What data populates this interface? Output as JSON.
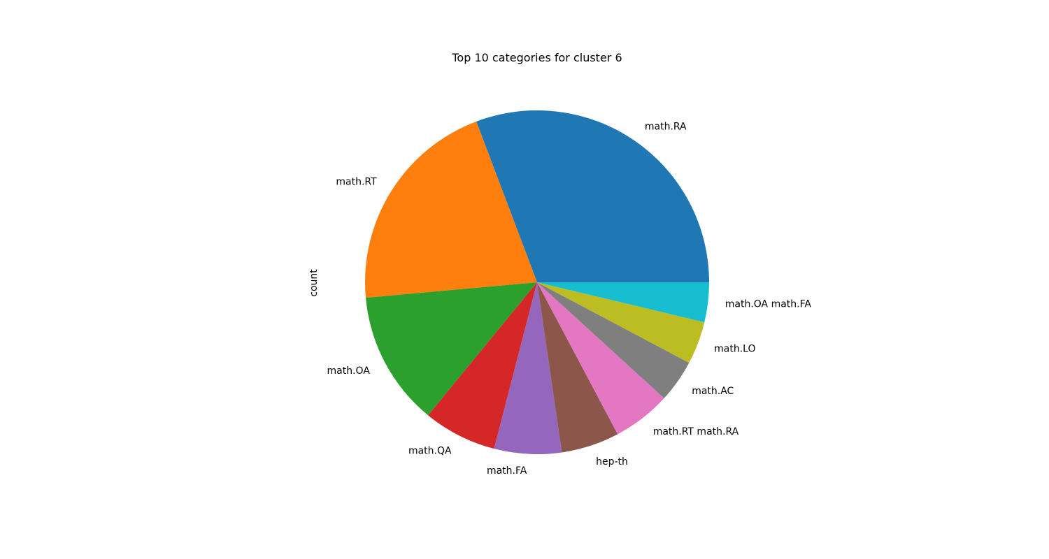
{
  "chart_data": {
    "type": "pie",
    "title": "Top 10 categories for cluster 6",
    "ylabel": "count",
    "categories": [
      "math.RA",
      "math.RT",
      "math.OA",
      "math.QA",
      "math.FA",
      "hep-th",
      "math.RT math.RA",
      "math.AC",
      "math.LO",
      "math.OA math.FA"
    ],
    "values": [
      107,
      72,
      44,
      24,
      22,
      19,
      19,
      14,
      14,
      13
    ],
    "colors": [
      "#1f77b4",
      "#ff7f0e",
      "#2ca02c",
      "#d62728",
      "#9467bd",
      "#8c564b",
      "#e377c2",
      "#7f7f7f",
      "#bcbd22",
      "#17becf"
    ],
    "start_angle_deg": 0,
    "direction": "counterclockwise"
  }
}
